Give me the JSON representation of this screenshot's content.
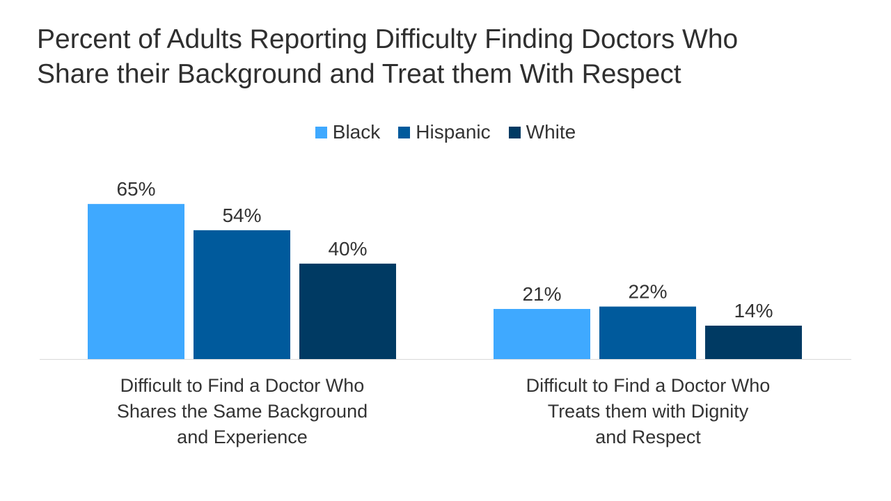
{
  "title": {
    "line1": "Percent of Adults Reporting Difficulty Finding Doctors Who",
    "line2": "Share their Background and Treat them With Respect"
  },
  "chart_data": {
    "type": "bar",
    "title": "Percent of Adults Reporting Difficulty Finding Doctors Who Share their Background and Treat them With Respect",
    "categories": [
      [
        "Difficult to Find a Doctor Who",
        "Shares the Same Background",
        "and Experience"
      ],
      [
        "Difficult to Find a Doctor Who",
        "Treats them with Dignity",
        "and Respect"
      ]
    ],
    "series": [
      {
        "name": "Black",
        "color": "#3fa9ff",
        "values": [
          65,
          21
        ],
        "labels": [
          "65%",
          "21%"
        ]
      },
      {
        "name": "Hispanic",
        "color": "#005a9c",
        "values": [
          54,
          22
        ],
        "labels": [
          "54%",
          "22%"
        ]
      },
      {
        "name": "White",
        "color": "#003a63",
        "values": [
          40,
          14
        ],
        "labels": [
          "40%",
          "14%"
        ]
      }
    ],
    "ylim": [
      0,
      70
    ],
    "grid": false,
    "legend_position": "top-center",
    "xlabel": "",
    "ylabel": ""
  }
}
